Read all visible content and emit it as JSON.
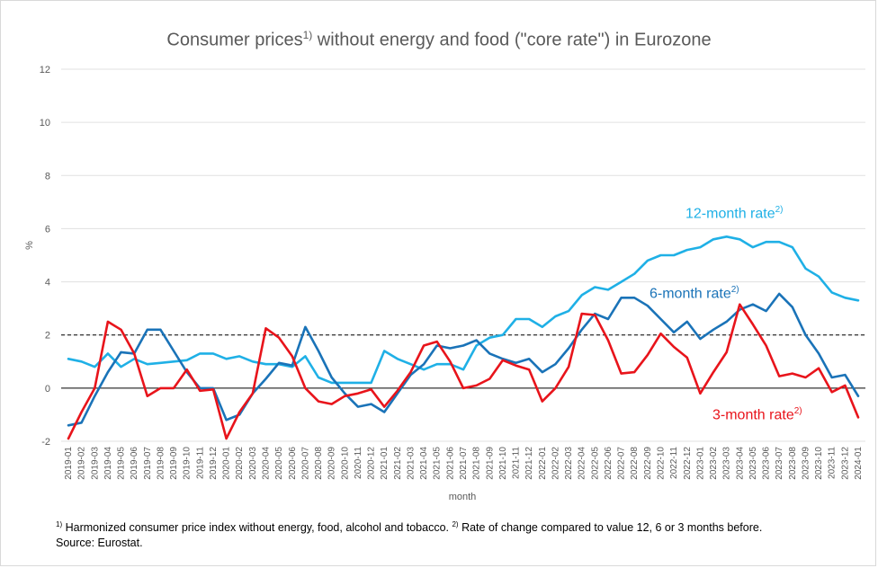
{
  "title": {
    "part1": "Consumer prices",
    "sup": "1)",
    "part2": " without energy and food (\"core rate\") in Eurozone"
  },
  "footnote": {
    "sup1": "1)",
    "text1": " Harmonized consumer price index without energy, food, alcohol and tobacco. ",
    "sup2": "2)",
    "text2": " Rate of change compared to value 12, 6 or 3 months before.",
    "source": "Source: Eurostat."
  },
  "chart_data": {
    "type": "line",
    "title": "Consumer prices1) without energy and food (\"core rate\") in Eurozone",
    "xlabel": "month",
    "ylabel": "%",
    "ylim": [
      -2,
      12
    ],
    "yticks": [
      -2,
      0,
      2,
      4,
      6,
      8,
      10,
      12
    ],
    "grid": true,
    "reference_line": {
      "y": 2,
      "style": "dashed"
    },
    "x": [
      "2019-01",
      "2019-02",
      "2019-03",
      "2019-04",
      "2019-05",
      "2019-06",
      "2019-07",
      "2019-08",
      "2019-09",
      "2019-10",
      "2019-11",
      "2019-12",
      "2020-01",
      "2020-02",
      "2020-03",
      "2020-04",
      "2020-05",
      "2020-06",
      "2020-07",
      "2020-08",
      "2020-09",
      "2020-10",
      "2020-11",
      "2020-12",
      "2021-01",
      "2021-02",
      "2021-03",
      "2021-04",
      "2021-05",
      "2021-06",
      "2021-07",
      "2021-08",
      "2021-09",
      "2021-10",
      "2021-11",
      "2021-12",
      "2022-01",
      "2022-02",
      "2022-03",
      "2022-04",
      "2022-05",
      "2022-06",
      "2022-07",
      "2022-08",
      "2022-09",
      "2022-10",
      "2022-11",
      "2022-12",
      "2023-01",
      "2023-02",
      "2023-03",
      "2023-04",
      "2023-05",
      "2023-06",
      "2023-07",
      "2023-08",
      "2023-09",
      "2023-10",
      "2023-11",
      "2023-12",
      "2024-01"
    ],
    "series": [
      {
        "name": "12-month rate",
        "label_sup": "2)",
        "color": "#1fb0e6",
        "values": [
          1.1,
          1.0,
          0.8,
          1.3,
          0.8,
          1.1,
          0.9,
          0.95,
          1.0,
          1.05,
          1.3,
          1.3,
          1.1,
          1.2,
          1.0,
          0.9,
          0.9,
          0.8,
          1.2,
          0.4,
          0.2,
          0.2,
          0.2,
          0.2,
          1.4,
          1.1,
          0.9,
          0.7,
          0.9,
          0.9,
          0.7,
          1.6,
          1.9,
          2.0,
          2.6,
          2.6,
          2.3,
          2.7,
          2.9,
          3.5,
          3.8,
          3.7,
          4.0,
          4.3,
          4.8,
          5.0,
          5.0,
          5.2,
          5.3,
          5.6,
          5.7,
          5.6,
          5.3,
          5.5,
          5.5,
          5.3,
          4.5,
          4.2,
          3.6,
          3.4,
          3.3
        ]
      },
      {
        "name": "6-month rate",
        "label_sup": "2)",
        "color": "#1a73b8",
        "values": [
          -1.4,
          -1.3,
          -0.3,
          0.6,
          1.35,
          1.3,
          2.2,
          2.2,
          1.4,
          0.6,
          0.0,
          0.0,
          -1.2,
          -1.0,
          -0.2,
          0.35,
          0.95,
          0.85,
          2.3,
          1.4,
          0.4,
          -0.2,
          -0.7,
          -0.6,
          -0.9,
          -0.2,
          0.5,
          0.9,
          1.6,
          1.5,
          1.6,
          1.8,
          1.3,
          1.1,
          0.95,
          1.1,
          0.6,
          0.9,
          1.5,
          2.2,
          2.8,
          2.6,
          3.4,
          3.4,
          3.1,
          2.6,
          2.1,
          2.5,
          1.85,
          2.2,
          2.5,
          2.95,
          3.15,
          2.9,
          3.55,
          3.05,
          2.0,
          1.3,
          0.4,
          0.5,
          -0.3
        ]
      },
      {
        "name": "3-month rate",
        "label_sup": "2)",
        "color": "#e8141b",
        "values": [
          -1.9,
          -0.9,
          0.0,
          2.5,
          2.2,
          1.3,
          -0.3,
          0.0,
          0.0,
          0.7,
          -0.1,
          -0.05,
          -1.9,
          -0.9,
          -0.2,
          2.25,
          1.9,
          1.2,
          0.0,
          -0.5,
          -0.6,
          -0.3,
          -0.2,
          -0.05,
          -0.7,
          -0.1,
          0.6,
          1.6,
          1.75,
          1.0,
          0.0,
          0.1,
          0.35,
          1.05,
          0.85,
          0.7,
          -0.5,
          0.0,
          0.8,
          2.8,
          2.75,
          1.8,
          0.55,
          0.6,
          1.25,
          2.05,
          1.55,
          1.15,
          -0.2,
          0.6,
          1.35,
          3.15,
          2.4,
          1.6,
          0.45,
          0.55,
          0.4,
          0.75,
          -0.15,
          0.1,
          -1.1
        ]
      }
    ]
  }
}
